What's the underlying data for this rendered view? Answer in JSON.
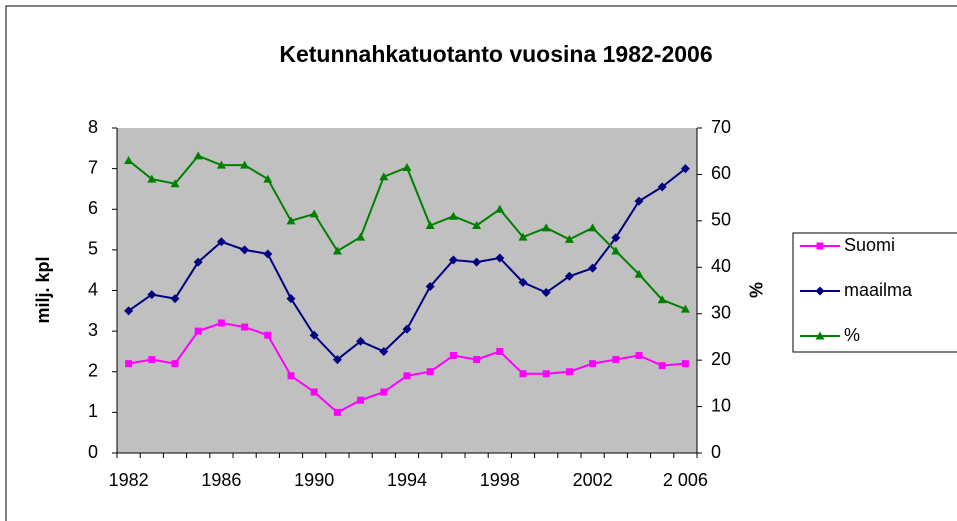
{
  "chart_data": {
    "type": "line",
    "title": "Ketunnahkatuotanto vuosina 1982-2006",
    "ylabel": "milj. kpl",
    "y2label": "%",
    "categories": [
      "1982",
      null,
      null,
      null,
      "1986",
      null,
      null,
      null,
      "1990",
      null,
      null,
      null,
      "1994",
      null,
      null,
      null,
      "1998",
      null,
      null,
      null,
      "2002",
      null,
      null,
      null,
      "2 006"
    ],
    "ylim": [
      0,
      8
    ],
    "yticks": [
      0,
      1,
      2,
      3,
      4,
      5,
      6,
      7,
      8
    ],
    "y2lim": [
      0,
      70
    ],
    "y2ticks": [
      0,
      10,
      20,
      30,
      40,
      50,
      60,
      70
    ],
    "series": [
      {
        "name": "Suomi",
        "color": "#ff00ff",
        "marker": "square",
        "values": [
          2.2,
          2.3,
          2.2,
          3.0,
          3.2,
          3.1,
          2.9,
          1.9,
          1.5,
          1.0,
          1.3,
          1.5,
          1.9,
          2.0,
          2.4,
          2.3,
          2.5,
          1.95,
          1.95,
          2.0,
          2.2,
          2.3,
          2.4,
          2.15,
          2.2
        ]
      },
      {
        "name": "maailma",
        "color": "#000080",
        "marker": "diamond",
        "values": [
          3.5,
          3.9,
          3.8,
          4.7,
          5.2,
          5.0,
          4.9,
          3.8,
          2.9,
          2.3,
          2.75,
          2.5,
          3.05,
          4.1,
          4.75,
          4.7,
          4.8,
          4.2,
          3.95,
          4.35,
          4.55,
          5.3,
          6.2,
          6.55,
          7.0
        ]
      },
      {
        "name": "%",
        "color": "#008000",
        "marker": "triangle",
        "axis": "y2",
        "values": [
          63,
          59,
          58,
          64,
          62,
          62,
          59,
          50,
          51.5,
          43.5,
          46.5,
          59.5,
          61.5,
          49,
          51,
          49,
          52.5,
          46.5,
          48.5,
          46,
          48.5,
          43.5,
          38.5,
          33,
          31
        ]
      }
    ]
  }
}
